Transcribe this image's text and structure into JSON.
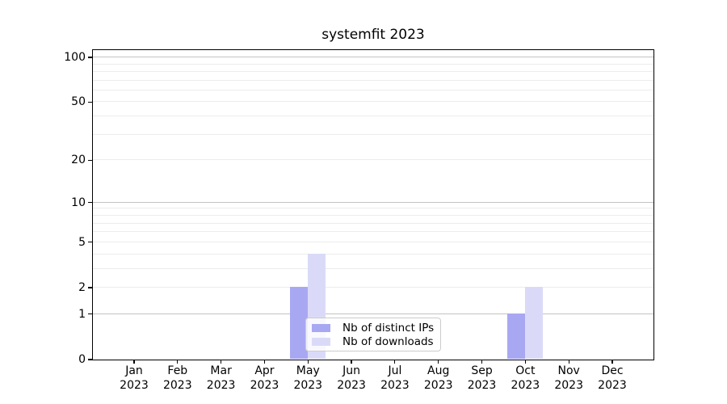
{
  "chart_data": {
    "type": "bar",
    "title": "systemfit 2023",
    "y_scale": "log1p",
    "categories": [
      "Jan 2023",
      "Feb 2023",
      "Mar 2023",
      "Apr 2023",
      "May 2023",
      "Jun 2023",
      "Jul 2023",
      "Aug 2023",
      "Sep 2023",
      "Oct 2023",
      "Nov 2023",
      "Dec 2023"
    ],
    "x_tick_month": [
      "Jan",
      "Feb",
      "Mar",
      "Apr",
      "May",
      "Jun",
      "Jul",
      "Aug",
      "Sep",
      "Oct",
      "Nov",
      "Dec"
    ],
    "x_tick_year": "2023",
    "series": [
      {
        "name": "Nb of distinct IPs",
        "color": "#a8a8f2",
        "values": [
          0,
          0,
          0,
          0,
          2,
          0,
          0,
          0,
          0,
          1,
          0,
          0
        ]
      },
      {
        "name": "Nb of downloads",
        "color": "#dadaf8",
        "values": [
          0,
          0,
          0,
          0,
          4,
          0,
          0,
          0,
          0,
          2,
          0,
          0
        ]
      }
    ],
    "y_ticks": [
      0,
      1,
      2,
      5,
      10,
      20,
      50,
      100
    ],
    "gridlines": [
      1,
      2,
      3,
      4,
      5,
      6,
      7,
      8,
      9,
      10,
      20,
      30,
      40,
      50,
      60,
      70,
      80,
      90,
      100
    ],
    "decade_gridlines": [
      1,
      10,
      100
    ],
    "ylim": [
      0,
      112
    ],
    "grid": "horizontal",
    "legend_position": "bottom-center-inside"
  },
  "legend": {
    "items": [
      {
        "label": "Nb of distinct IPs",
        "color": "#a8a8f2"
      },
      {
        "label": "Nb of downloads",
        "color": "#dadaf8"
      }
    ]
  },
  "colors": {
    "background": "#ffffff",
    "spine": "#000000",
    "decade_grid": "#c3c3c3",
    "minor_grid": "#ececec",
    "text": "#000000",
    "legend_border": "#cccccc"
  }
}
